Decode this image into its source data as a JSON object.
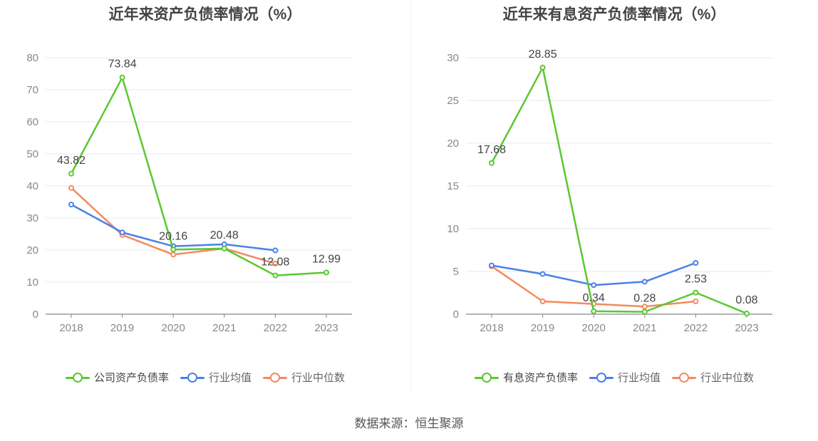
{
  "chart_data": [
    {
      "type": "line",
      "title": "近年来资产负债率情况（%）",
      "categories": [
        "2018",
        "2019",
        "2020",
        "2021",
        "2022",
        "2023"
      ],
      "ylim": [
        0,
        80
      ],
      "yticks": [
        "0",
        "10",
        "20",
        "30",
        "40",
        "50",
        "60",
        "70",
        "80"
      ],
      "grid": true,
      "legend_position": "bottom",
      "series": [
        {
          "name": "公司资产负债率",
          "color": "#5ac831",
          "values": [
            43.82,
            73.84,
            20.16,
            20.48,
            12.08,
            12.99
          ],
          "labels": [
            "43.82",
            "73.84",
            "20.16",
            "20.48",
            "12.08",
            "12.99"
          ]
        },
        {
          "name": "行业均值",
          "color": "#4a80e8",
          "values": [
            34.2,
            25.5,
            21.2,
            21.8,
            19.9,
            null
          ],
          "labels": []
        },
        {
          "name": "行业中位数",
          "color": "#f48a5e",
          "values": [
            39.4,
            24.7,
            18.6,
            20.5,
            15.8,
            null
          ],
          "labels": []
        }
      ]
    },
    {
      "type": "line",
      "title": "近年来有息资产负债率情况（%）",
      "categories": [
        "2018",
        "2019",
        "2020",
        "2021",
        "2022",
        "2023"
      ],
      "ylim": [
        0,
        30
      ],
      "yticks": [
        "0",
        "5",
        "10",
        "15",
        "20",
        "25",
        "30"
      ],
      "grid": true,
      "legend_position": "bottom",
      "series": [
        {
          "name": "有息资产负债率",
          "color": "#5ac831",
          "values": [
            17.68,
            28.85,
            0.34,
            0.28,
            2.53,
            0.08
          ],
          "labels": [
            "17.68",
            "28.85",
            "0.34",
            "0.28",
            "2.53",
            "0.08"
          ]
        },
        {
          "name": "行业均值",
          "color": "#4a80e8",
          "values": [
            5.7,
            4.7,
            3.4,
            3.8,
            6.0,
            null
          ],
          "labels": []
        },
        {
          "name": "行业中位数",
          "color": "#f48a5e",
          "values": [
            5.6,
            1.5,
            1.2,
            0.9,
            1.5,
            null
          ],
          "labels": []
        }
      ]
    }
  ],
  "footer": {
    "source": "数据来源：恒生聚源"
  }
}
